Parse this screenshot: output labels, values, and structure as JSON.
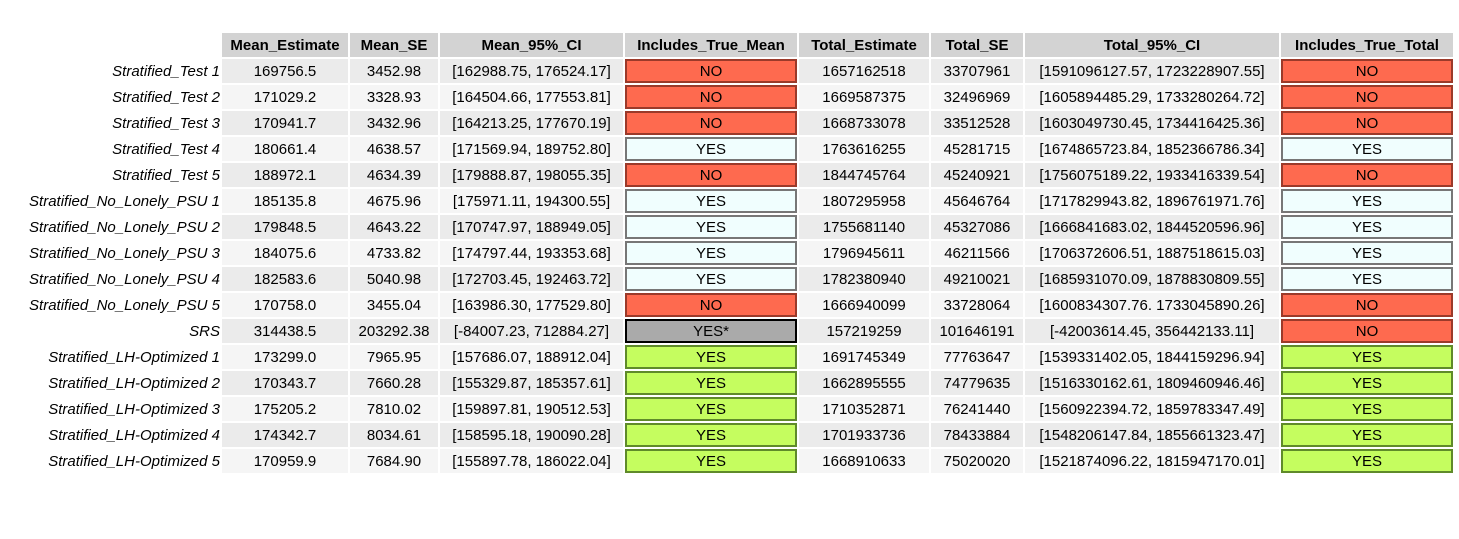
{
  "table": {
    "headers": [
      "Mean_Estimate",
      "Mean_SE",
      "Mean_95%_CI",
      "Includes_True_Mean",
      "Total_Estimate",
      "Total_SE",
      "Total_95%_CI",
      "Includes_True_Total"
    ],
    "flag_colors": {
      "no": "#fe6a4f",
      "yes": "#f0fefe",
      "yes_lime": "#c5fd5f",
      "yes_star": "#aaaaaa"
    },
    "rows": [
      {
        "label": "Stratified_Test 1",
        "mean_estimate": "169756.5",
        "mean_se": "3452.98",
        "mean_ci": "[162988.75, 176524.17]",
        "includes_mean": "NO",
        "mean_flag": "no",
        "total_estimate": "1657162518",
        "total_se": "33707961",
        "total_ci": "[1591096127.57, 1723228907.55]",
        "includes_total": "NO",
        "total_flag": "no"
      },
      {
        "label": "Stratified_Test 2",
        "mean_estimate": "171029.2",
        "mean_se": "3328.93",
        "mean_ci": "[164504.66, 177553.81]",
        "includes_mean": "NO",
        "mean_flag": "no",
        "total_estimate": "1669587375",
        "total_se": "32496969",
        "total_ci": "[1605894485.29, 1733280264.72]",
        "includes_total": "NO",
        "total_flag": "no"
      },
      {
        "label": "Stratified_Test 3",
        "mean_estimate": "170941.7",
        "mean_se": "3432.96",
        "mean_ci": "[164213.25, 177670.19]",
        "includes_mean": "NO",
        "mean_flag": "no",
        "total_estimate": "1668733078",
        "total_se": "33512528",
        "total_ci": "[1603049730.45, 1734416425.36]",
        "includes_total": "NO",
        "total_flag": "no"
      },
      {
        "label": "Stratified_Test 4",
        "mean_estimate": "180661.4",
        "mean_se": "4638.57",
        "mean_ci": "[171569.94, 189752.80]",
        "includes_mean": "YES",
        "mean_flag": "yes",
        "total_estimate": "1763616255",
        "total_se": "45281715",
        "total_ci": "[1674865723.84, 1852366786.34]",
        "includes_total": "YES",
        "total_flag": "yes"
      },
      {
        "label": "Stratified_Test 5",
        "mean_estimate": "188972.1",
        "mean_se": "4634.39",
        "mean_ci": "[179888.87, 198055.35]",
        "includes_mean": "NO",
        "mean_flag": "no",
        "total_estimate": "1844745764",
        "total_se": "45240921",
        "total_ci": "[1756075189.22, 1933416339.54]",
        "includes_total": "NO",
        "total_flag": "no"
      },
      {
        "label": "Stratified_No_Lonely_PSU 1",
        "mean_estimate": "185135.8",
        "mean_se": "4675.96",
        "mean_ci": "[175971.11, 194300.55]",
        "includes_mean": "YES",
        "mean_flag": "yes",
        "total_estimate": "1807295958",
        "total_se": "45646764",
        "total_ci": "[1717829943.82, 1896761971.76]",
        "includes_total": "YES",
        "total_flag": "yes"
      },
      {
        "label": "Stratified_No_Lonely_PSU 2",
        "mean_estimate": "179848.5",
        "mean_se": "4643.22",
        "mean_ci": "[170747.97, 188949.05]",
        "includes_mean": "YES",
        "mean_flag": "yes",
        "total_estimate": "1755681140",
        "total_se": "45327086",
        "total_ci": "[1666841683.02, 1844520596.96]",
        "includes_total": "YES",
        "total_flag": "yes"
      },
      {
        "label": "Stratified_No_Lonely_PSU 3",
        "mean_estimate": "184075.6",
        "mean_se": "4733.82",
        "mean_ci": "[174797.44, 193353.68]",
        "includes_mean": "YES",
        "mean_flag": "yes",
        "total_estimate": "1796945611",
        "total_se": "46211566",
        "total_ci": "[1706372606.51, 1887518615.03]",
        "includes_total": "YES",
        "total_flag": "yes"
      },
      {
        "label": "Stratified_No_Lonely_PSU 4",
        "mean_estimate": "182583.6",
        "mean_se": "5040.98",
        "mean_ci": "[172703.45, 192463.72]",
        "includes_mean": "YES",
        "mean_flag": "yes",
        "total_estimate": "1782380940",
        "total_se": "49210021",
        "total_ci": "[1685931070.09, 1878830809.55]",
        "includes_total": "YES",
        "total_flag": "yes"
      },
      {
        "label": "Stratified_No_Lonely_PSU 5",
        "mean_estimate": "170758.0",
        "mean_se": "3455.04",
        "mean_ci": "[163986.30, 177529.80]",
        "includes_mean": "NO",
        "mean_flag": "no",
        "total_estimate": "1666940099",
        "total_se": "33728064",
        "total_ci": "[1600834307.76. 1733045890.26]",
        "includes_total": "NO",
        "total_flag": "no"
      },
      {
        "label": "SRS",
        "mean_estimate": "314438.5",
        "mean_se": "203292.38",
        "mean_ci": "[-84007.23, 712884.27]",
        "includes_mean": "YES*",
        "mean_flag": "yes-star",
        "total_estimate": "157219259",
        "total_se": "101646191",
        "total_ci": "[-42003614.45, 356442133.11]",
        "includes_total": "NO",
        "total_flag": "no"
      },
      {
        "label": "Stratified_LH-Optimized 1",
        "mean_estimate": "173299.0",
        "mean_se": "7965.95",
        "mean_ci": "[157686.07, 188912.04]",
        "includes_mean": "YES",
        "mean_flag": "yes-lime",
        "total_estimate": "1691745349",
        "total_se": "77763647",
        "total_ci": "[1539331402.05, 1844159296.94]",
        "includes_total": "YES",
        "total_flag": "yes-lime"
      },
      {
        "label": "Stratified_LH-Optimized 2",
        "mean_estimate": "170343.7",
        "mean_se": "7660.28",
        "mean_ci": "[155329.87, 185357.61]",
        "includes_mean": "YES",
        "mean_flag": "yes-lime",
        "total_estimate": "1662895555",
        "total_se": "74779635",
        "total_ci": "[1516330162.61, 1809460946.46]",
        "includes_total": "YES",
        "total_flag": "yes-lime"
      },
      {
        "label": "Stratified_LH-Optimized 3",
        "mean_estimate": "175205.2",
        "mean_se": "7810.02",
        "mean_ci": "[159897.81, 190512.53]",
        "includes_mean": "YES",
        "mean_flag": "yes-lime",
        "total_estimate": "1710352871",
        "total_se": "76241440",
        "total_ci": "[1560922394.72, 1859783347.49]",
        "includes_total": "YES",
        "total_flag": "yes-lime"
      },
      {
        "label": "Stratified_LH-Optimized 4",
        "mean_estimate": "174342.7",
        "mean_se": "8034.61",
        "mean_ci": "[158595.18, 190090.28]",
        "includes_mean": "YES",
        "mean_flag": "yes-lime",
        "total_estimate": "1701933736",
        "total_se": "78433884",
        "total_ci": "[1548206147.84, 1855661323.47]",
        "includes_total": "YES",
        "total_flag": "yes-lime"
      },
      {
        "label": "Stratified_LH-Optimized 5",
        "mean_estimate": "170959.9",
        "mean_se": "7684.90",
        "mean_ci": "[155897.78, 186022.04]",
        "includes_mean": "YES",
        "mean_flag": "yes-lime",
        "total_estimate": "1668910633",
        "total_se": "75020020",
        "total_ci": "[1521874096.22, 1815947170.01]",
        "includes_total": "YES",
        "total_flag": "yes-lime"
      }
    ]
  }
}
